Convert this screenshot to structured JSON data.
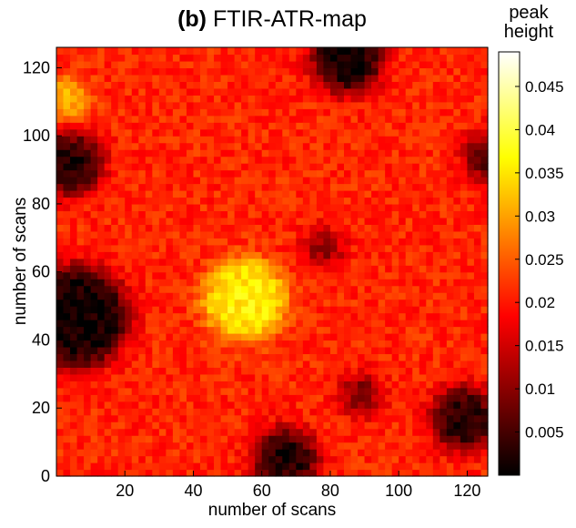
{
  "chart_data": {
    "type": "heatmap",
    "title_prefix": "(b)",
    "title": "FTIR-ATR-map",
    "xlabel": "number of scans",
    "ylabel": "number of scans",
    "xlim": [
      0,
      126
    ],
    "ylim": [
      0,
      126
    ],
    "xticks": [
      20,
      40,
      60,
      80,
      100,
      120
    ],
    "yticks": [
      0,
      20,
      40,
      60,
      80,
      100,
      120
    ],
    "grid": false,
    "colorbar": {
      "label": "peak height",
      "range": [
        0.0,
        0.049
      ],
      "ticks": [
        0.005,
        0.01,
        0.015,
        0.02,
        0.025,
        0.03,
        0.035,
        0.04,
        0.045
      ],
      "tick_labels": [
        "0.005",
        "0.01",
        "0.015",
        "0.02",
        "0.025",
        "0.03",
        "0.035",
        "0.04",
        "0.045"
      ],
      "colormap": "hot"
    },
    "background_value": 0.021,
    "features": [
      {
        "kind": "low",
        "x": 6,
        "y": 47,
        "radius": 15,
        "value": 0.001
      },
      {
        "kind": "low",
        "x": 4,
        "y": 92,
        "radius": 9,
        "value": 0.002
      },
      {
        "kind": "low",
        "x": 85,
        "y": 123,
        "radius": 10,
        "value": 0.001
      },
      {
        "kind": "low",
        "x": 67,
        "y": 5,
        "radius": 9,
        "value": 0.002
      },
      {
        "kind": "low",
        "x": 119,
        "y": 17,
        "radius": 9,
        "value": 0.002
      },
      {
        "kind": "low",
        "x": 89,
        "y": 24,
        "radius": 5,
        "value": 0.007
      },
      {
        "kind": "low",
        "x": 78,
        "y": 67,
        "radius": 5,
        "value": 0.009
      },
      {
        "kind": "low",
        "x": 126,
        "y": 94,
        "radius": 6,
        "value": 0.004
      },
      {
        "kind": "high",
        "x": 55,
        "y": 52,
        "radius": 12,
        "value": 0.036
      },
      {
        "kind": "high",
        "x": 3,
        "y": 111,
        "radius": 6,
        "value": 0.031
      }
    ]
  }
}
